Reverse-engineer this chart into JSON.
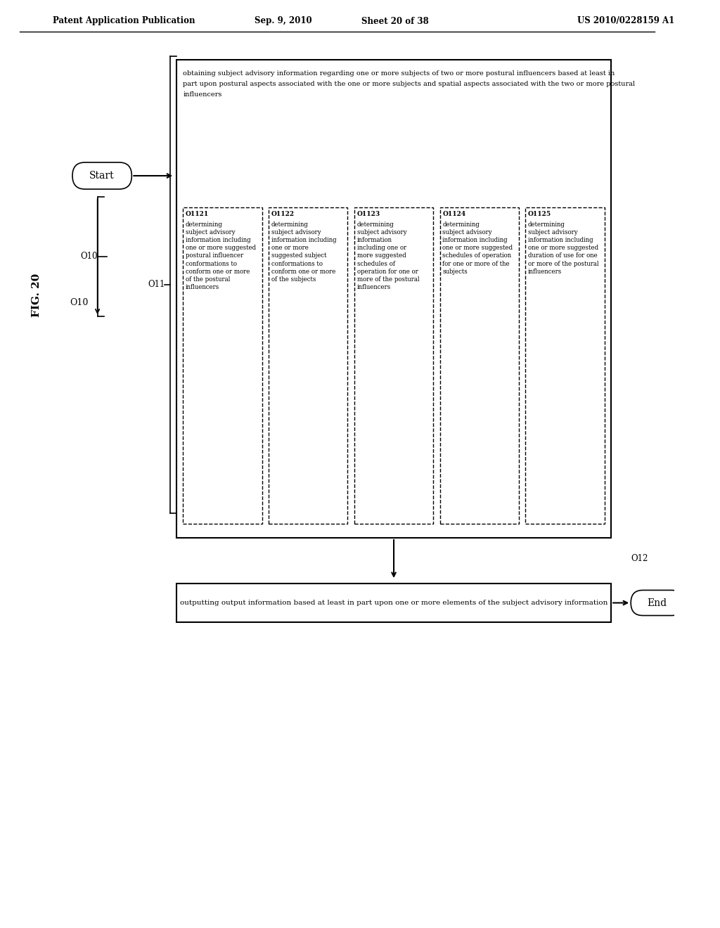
{
  "title_header": "Patent Application Publication",
  "title_date": "Sep. 9, 2010",
  "title_sheet": "Sheet 20 of 38",
  "title_patent": "US 2010/0228159 A1",
  "fig_label": "FIG. 20",
  "background_color": "#ffffff",
  "text_color": "#000000",
  "start_label": "Start",
  "end_label": "End",
  "label_O10": "O10",
  "label_O11": "O11",
  "label_O12": "O12",
  "main_box_text_top": "obtaining subject advisory information regarding one or more subjects of two or more postural influencers based at least in",
  "main_box_text_mid": "part upon postural aspects associated with the one or more subjects and spatial aspects associated with the two or more postural",
  "main_box_text_bot": "influencers",
  "sub_box1_label": "O1121",
  "sub_box1_text": "determining\nsubject advisory\ninformation including\none or more suggested\npostural influencer\nconformations to\nconform one or more\nof the postural\ninfluencers",
  "sub_box2_label": "O1122",
  "sub_box2_text": "determining\nsubject advisory\ninformation including\none or more\nsuggested subject\nconformations to\nconform one or more\nof the subjects",
  "sub_box3_label": "O1123",
  "sub_box3_text": "determining\nsubject advisory\ninformation\nincluding one or\nmore suggested\nschedules of\noperation for one or\nmore of the postural\ninfluencers",
  "sub_box4_label": "O1124",
  "sub_box4_text": "determining\nsubject advisory\ninformation including\none or more suggested\nschedules of operation\nfor one or more of the\nsubjects",
  "sub_box5_label": "O1125",
  "sub_box5_text": "determining\nsubject advisory\ninformation including\none or more suggested\nduration of use for one\nor more of the postural\ninfluencers",
  "output_box_text": "outputting output information based at least in part upon one or more elements of the subject advisory information"
}
